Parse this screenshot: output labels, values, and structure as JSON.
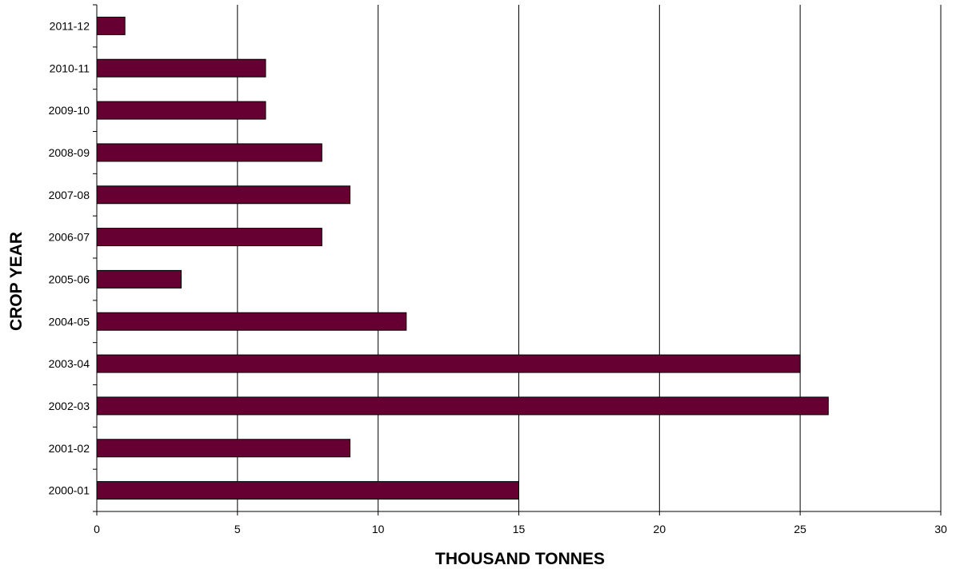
{
  "chart_data": {
    "type": "bar",
    "orientation": "horizontal",
    "title": "",
    "xlabel": "THOUSAND TONNES",
    "ylabel": "CROP YEAR",
    "categories": [
      "2000-01",
      "2001-02",
      "2002-03",
      "2003-04",
      "2004-05",
      "2005-06",
      "2006-07",
      "2007-08",
      "2008-09",
      "2009-10",
      "2010-11",
      "2011-12"
    ],
    "values": [
      15,
      9,
      26,
      25,
      11,
      3,
      8,
      9,
      8,
      6,
      6,
      1
    ],
    "xlim": [
      0,
      30
    ],
    "xticks": [
      "0",
      "5",
      "10",
      "15",
      "20",
      "25",
      "30"
    ],
    "grid": "vertical",
    "legend": "none",
    "colors": {
      "bar": "#660033",
      "bar_stroke": "#000000",
      "grid": "#000000"
    }
  }
}
